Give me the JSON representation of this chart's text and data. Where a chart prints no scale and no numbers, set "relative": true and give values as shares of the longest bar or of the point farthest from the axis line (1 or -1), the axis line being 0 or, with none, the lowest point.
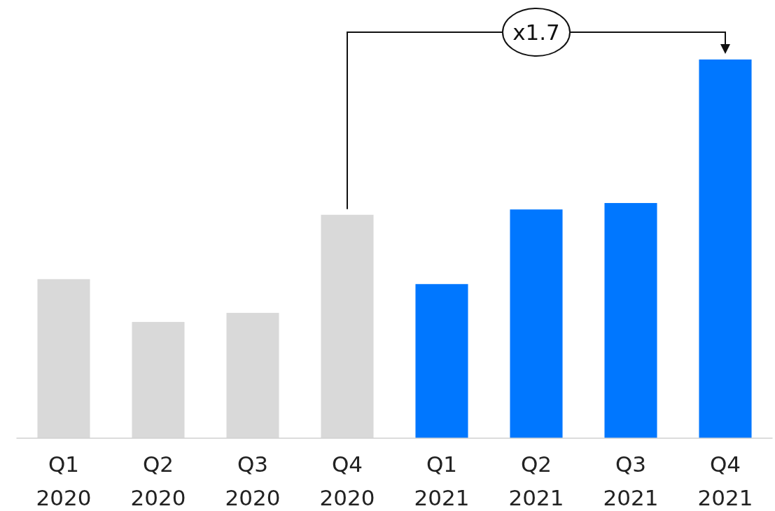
{
  "chart_data": {
    "type": "bar",
    "relative": true,
    "categories": [
      "Q1\n2020",
      "Q2\n2020",
      "Q3\n2020",
      "Q4\n2020",
      "Q1\n2021",
      "Q2\n2021",
      "Q3\n2021",
      "Q4\n2021"
    ],
    "values": [
      0.42,
      0.307,
      0.331,
      0.59,
      0.407,
      0.604,
      0.621,
      1
    ],
    "colors": [
      "#d9d9d9",
      "#d9d9d9",
      "#d9d9d9",
      "#d9d9d9",
      "#0077ff",
      "#0077ff",
      "#0077ff",
      "#0077ff"
    ],
    "annotations": [
      "x1.7"
    ]
  }
}
